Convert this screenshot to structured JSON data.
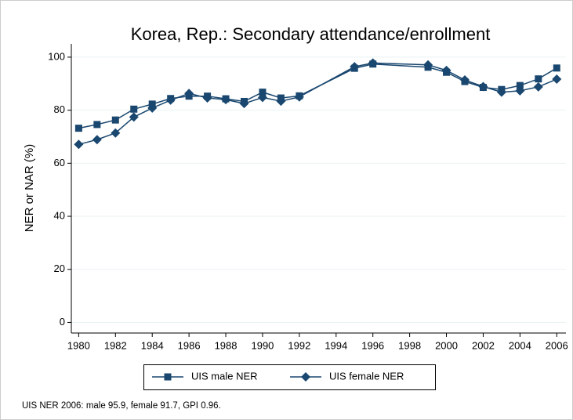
{
  "chart_data": {
    "type": "line",
    "title": "Korea, Rep.: Secondary attendance/enrollment",
    "y_label": "NER or NAR (%)",
    "note": "UIS NER 2006: male 95.9, female 91.7, GPI 0.96.",
    "x": [
      1980,
      1981,
      1982,
      1983,
      1984,
      1985,
      1986,
      1987,
      1988,
      1989,
      1990,
      1991,
      1992,
      1995,
      1996,
      1999,
      2000,
      2001,
      2002,
      2003,
      2004,
      2005,
      2006
    ],
    "series": [
      {
        "name": "UIS male NER",
        "color": "#1a476f",
        "marker": "square",
        "values": [
          73.2,
          74.6,
          76.3,
          80.4,
          82.3,
          84.4,
          85.3,
          85.3,
          84.3,
          83.3,
          86.8,
          84.6,
          85.4,
          95.8,
          97.4,
          96.2,
          94.3,
          90.8,
          88.6,
          87.8,
          89.3,
          91.8,
          95.9
        ]
      },
      {
        "name": "UIS female NER",
        "color": "#1a476f",
        "marker": "diamond",
        "values": [
          67.1,
          68.9,
          71.4,
          77.4,
          80.8,
          83.8,
          86.3,
          84.6,
          84.0,
          82.5,
          84.8,
          83.4,
          85.0,
          96.4,
          97.8,
          97.1,
          95.0,
          91.4,
          88.9,
          86.8,
          87.3,
          88.8,
          91.7
        ]
      }
    ],
    "xlim": [
      1979.6,
      2006.5
    ],
    "xticks": [
      1980,
      1982,
      1984,
      1986,
      1988,
      1990,
      1992,
      1994,
      1996,
      1998,
      2000,
      2002,
      2004,
      2006
    ],
    "ylim": [
      -4,
      105
    ],
    "yticks": [
      0,
      20,
      40,
      60,
      80,
      100
    ],
    "grid": true,
    "legend": "bottom"
  }
}
